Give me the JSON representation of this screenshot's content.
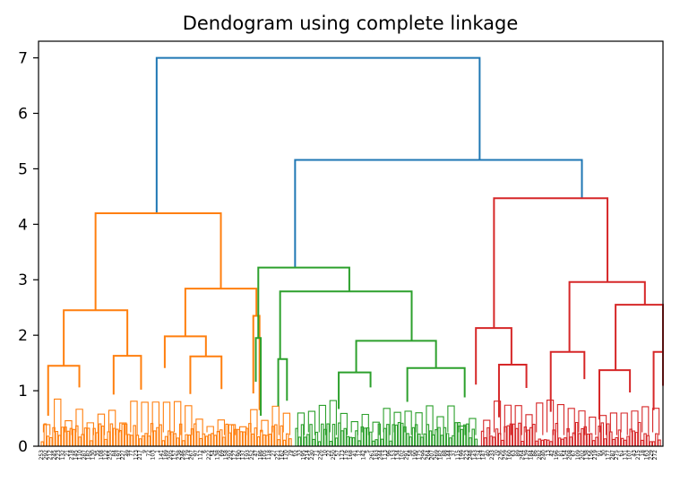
{
  "chart_data": {
    "type": "dendrogram",
    "title": "Dendogram using complete linkage",
    "xlabel": "",
    "ylabel": "",
    "ylim": [
      0,
      7.3
    ],
    "yticks": [
      0,
      1,
      2,
      3,
      4,
      5,
      6,
      7
    ],
    "grid": false,
    "legend": "none",
    "colors": {
      "top": "#1f77b4",
      "orange": "#ff7f0e",
      "green": "#2ca02c",
      "red": "#d62728"
    },
    "leaf_labels": [
      "253",
      "292",
      "212",
      "245",
      "223",
      "132",
      "21",
      "218",
      "145",
      "110",
      "287",
      "182",
      "130",
      "35",
      "108",
      "122",
      "255",
      "84",
      "197",
      "227",
      "49",
      "77",
      "123",
      "217",
      "9",
      "72",
      "103",
      "1",
      "141",
      "189",
      "205",
      "157",
      "238",
      "246",
      "179",
      "267",
      "97",
      "112",
      "6",
      "222",
      "54",
      "138",
      "69",
      "158",
      "292",
      "127",
      "190",
      "137",
      "193",
      "252",
      "47",
      "186",
      "105",
      "118",
      "27",
      "221",
      "162",
      "170",
      "79",
      "65",
      "33",
      "195",
      "214",
      "230",
      "71",
      "226",
      "10",
      "22",
      "250",
      "57",
      "173",
      "176",
      "168",
      "41",
      "12",
      "142",
      "5",
      "261",
      "183",
      "244",
      "113",
      "96",
      "153",
      "134",
      "102",
      "291",
      "58",
      "190",
      "175",
      "299",
      "264",
      "207",
      "269",
      "182",
      "88",
      "144",
      "37",
      "115",
      "199",
      "223",
      "248",
      "143",
      "124",
      "147",
      "40",
      "233",
      "70",
      "236",
      "259",
      "160",
      "63",
      "89",
      "264",
      "139",
      "184",
      "86",
      "282",
      "240",
      "13",
      "42",
      "196",
      "81",
      "154",
      "208",
      "67",
      "109",
      "202",
      "138",
      "156",
      "219",
      "91",
      "30",
      "177",
      "287",
      "275",
      "61",
      "131",
      "107",
      "43",
      "215",
      "18",
      "163",
      "229",
      "272"
    ],
    "clusters": [
      {
        "color": "orange",
        "merge_height": 4.2,
        "start": 0.0,
        "end": 0.408
      },
      {
        "color": "green",
        "merge_height": 3.22,
        "start": 0.408,
        "end": 0.706
      },
      {
        "color": "red",
        "merge_height": 4.47,
        "start": 0.706,
        "end": 1.0
      }
    ],
    "links": [
      {
        "color": "top",
        "xl": 0.188,
        "xr": 0.706,
        "h": 7.0,
        "hl": 4.2,
        "hr": 5.16
      },
      {
        "color": "top",
        "xl": 0.41,
        "xr": 0.87,
        "h": 5.16,
        "hl": 3.22,
        "hr": 4.47
      },
      {
        "color": "orange",
        "xl": 0.09,
        "xr": 0.291,
        "h": 4.2,
        "hl": 2.45,
        "hr": 2.84
      },
      {
        "color": "orange",
        "xl": 0.039,
        "xr": 0.141,
        "h": 2.45,
        "hl": 1.45,
        "hr": 1.63
      },
      {
        "color": "orange",
        "xl": 0.014,
        "xr": 0.064,
        "h": 1.45,
        "hl": 0.55,
        "hr": 1.06
      },
      {
        "color": "orange",
        "xl": 0.119,
        "xr": 0.163,
        "h": 1.63,
        "hl": 0.93,
        "hr": 1.02
      },
      {
        "color": "orange",
        "xl": 0.234,
        "xr": 0.348,
        "h": 2.84,
        "hl": 1.98,
        "hr": 2.35
      },
      {
        "color": "orange",
        "xl": 0.201,
        "xr": 0.267,
        "h": 1.98,
        "hl": 1.41,
        "hr": 1.62
      },
      {
        "color": "orange",
        "xl": 0.242,
        "xr": 0.292,
        "h": 1.62,
        "hl": 0.94,
        "hr": 1.03
      },
      {
        "color": "orange",
        "xl": 0.343,
        "xr": 0.353,
        "h": 2.35,
        "hl": 0.95,
        "hr": 0.65
      },
      {
        "color": "green",
        "xl": 0.351,
        "xr": 0.497,
        "h": 3.22,
        "hl": 1.95,
        "hr": 2.79
      },
      {
        "color": "green",
        "xl": 0.347,
        "xr": 0.355,
        "h": 1.95,
        "hl": 1.16,
        "hr": 0.55
      },
      {
        "color": "green",
        "xl": 0.386,
        "xr": 0.597,
        "h": 2.79,
        "hl": 1.57,
        "hr": 1.9
      },
      {
        "color": "green",
        "xl": 0.383,
        "xr": 0.397,
        "h": 1.57,
        "hl": 0.72,
        "hr": 0.82
      },
      {
        "color": "green",
        "xl": 0.508,
        "xr": 0.636,
        "h": 1.9,
        "hl": 1.33,
        "hr": 1.41
      },
      {
        "color": "green",
        "xl": 0.48,
        "xr": 0.531,
        "h": 1.33,
        "hl": 0.67,
        "hr": 1.06
      },
      {
        "color": "green",
        "xl": 0.59,
        "xr": 0.682,
        "h": 1.41,
        "hl": 0.8,
        "hr": 0.88
      },
      {
        "color": "red",
        "xl": 0.729,
        "xr": 0.911,
        "h": 4.47,
        "hl": 2.13,
        "hr": 2.96
      },
      {
        "color": "red",
        "xl": 0.7,
        "xr": 0.757,
        "h": 2.13,
        "hl": 1.11,
        "hr": 1.47
      },
      {
        "color": "red",
        "xl": 0.737,
        "xr": 0.781,
        "h": 1.47,
        "hl": 0.52,
        "hr": 1.05
      },
      {
        "color": "red",
        "xl": 0.85,
        "xr": 0.971,
        "h": 2.96,
        "hl": 1.7,
        "hr": 2.55
      },
      {
        "color": "red",
        "xl": 0.82,
        "xr": 0.874,
        "h": 1.7,
        "hl": 0.62,
        "hr": 1.21
      },
      {
        "color": "red",
        "xl": 0.924,
        "xr": 1.01,
        "h": 2.55,
        "hl": 1.37,
        "hr": 1.7
      },
      {
        "color": "red",
        "xl": 0.898,
        "xr": 0.947,
        "h": 1.37,
        "hl": 0.48,
        "hr": 0.97
      },
      {
        "color": "red",
        "xl": 0.985,
        "xr": 1.03,
        "h": 1.7,
        "hl": 0.65,
        "hr": 1.09
      }
    ]
  }
}
